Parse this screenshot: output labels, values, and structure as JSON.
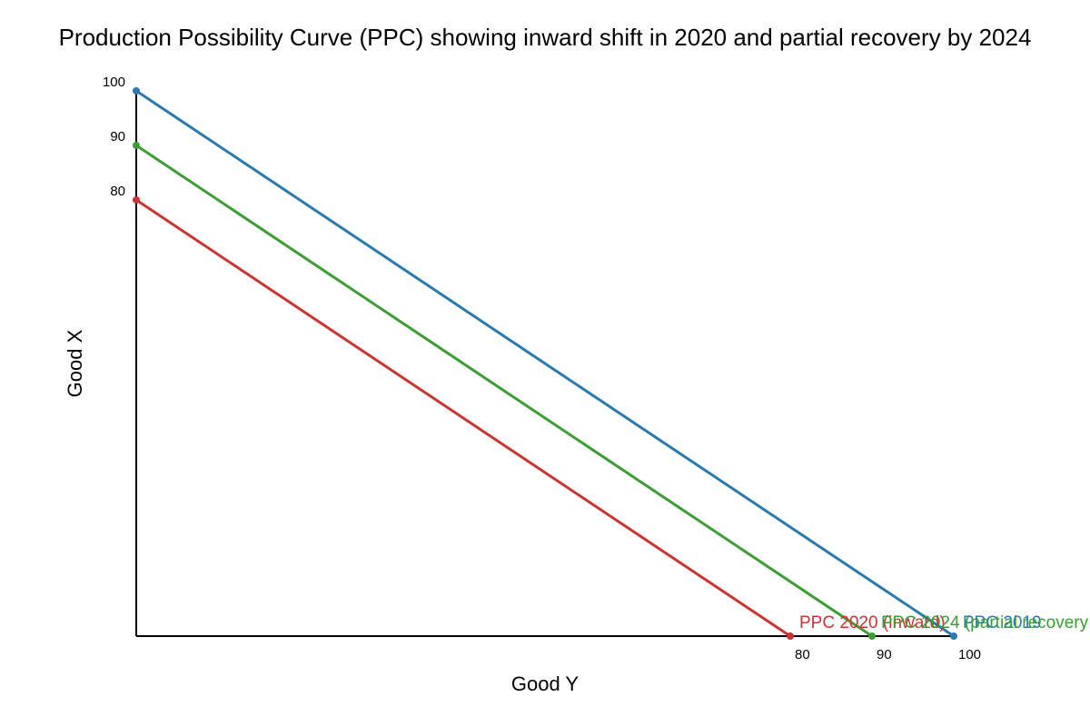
{
  "chart_data": {
    "type": "line",
    "title": "Production Possibility Curve (PPC) showing inward shift in 2020 and partial recovery by 2024",
    "xlabel": "Good Y",
    "ylabel": "Good X",
    "xlim": [
      0,
      100
    ],
    "ylim": [
      0,
      100
    ],
    "x_ticks": [
      80,
      90,
      100
    ],
    "y_ticks": [
      80,
      90,
      100
    ],
    "grid": false,
    "legend": "inline labels at right end of each line",
    "series": [
      {
        "name": "PPC 2019",
        "color": "#2a7aad",
        "points": [
          {
            "x": 0,
            "y": 100
          },
          {
            "x": 100,
            "y": 0
          }
        ]
      },
      {
        "name": "PPC 2020 (inward)",
        "color": "#cc3333",
        "points": [
          {
            "x": 0,
            "y": 80
          },
          {
            "x": 80,
            "y": 0
          }
        ]
      },
      {
        "name": "PPC 2024 (partial recovery",
        "color": "#3a9e35",
        "points": [
          {
            "x": 0,
            "y": 90
          },
          {
            "x": 90,
            "y": 0
          }
        ]
      }
    ]
  }
}
